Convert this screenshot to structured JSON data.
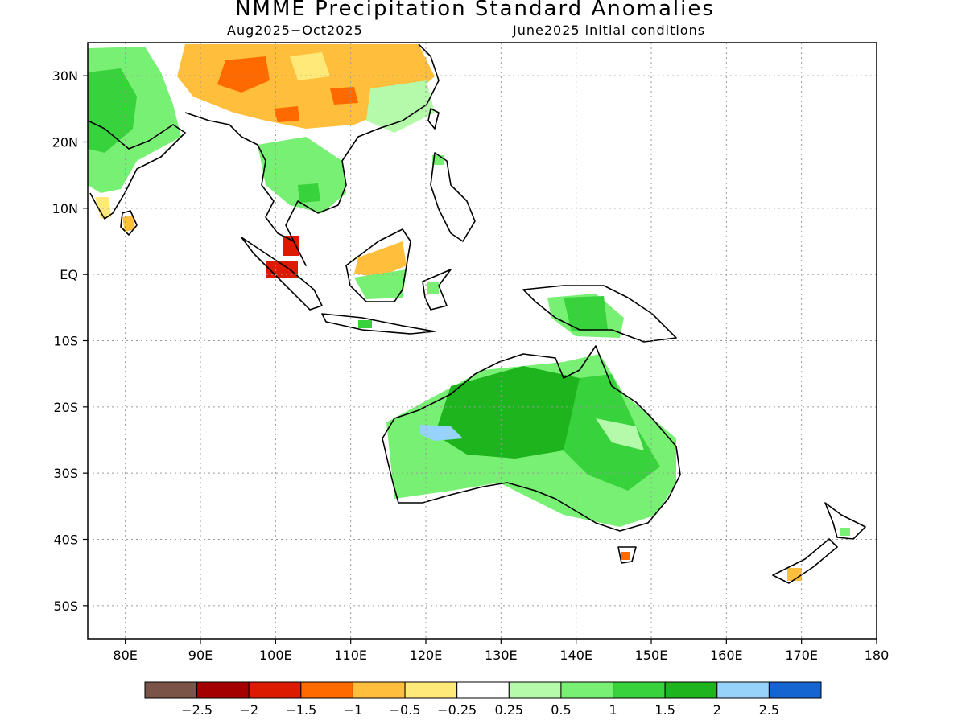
{
  "title": "NMME Precipitation Standard Anomalies",
  "subtitle_left": "Aug2025−Oct2025",
  "subtitle_right": "June2025 initial conditions",
  "map": {
    "lon_range": [
      75,
      180
    ],
    "lat_range": [
      -55,
      35
    ],
    "lat_ticks": [
      {
        "value": 30,
        "label": "30N"
      },
      {
        "value": 20,
        "label": "20N"
      },
      {
        "value": 10,
        "label": "10N"
      },
      {
        "value": 0,
        "label": "EQ"
      },
      {
        "value": -10,
        "label": "10S"
      },
      {
        "value": -20,
        "label": "20S"
      },
      {
        "value": -30,
        "label": "30S"
      },
      {
        "value": -40,
        "label": "40S"
      },
      {
        "value": -50,
        "label": "50S"
      }
    ],
    "lon_ticks": [
      {
        "value": 80,
        "label": "80E"
      },
      {
        "value": 90,
        "label": "90E"
      },
      {
        "value": 100,
        "label": "100E"
      },
      {
        "value": 110,
        "label": "110E"
      },
      {
        "value": 120,
        "label": "120E"
      },
      {
        "value": 130,
        "label": "130E"
      },
      {
        "value": 140,
        "label": "140E"
      },
      {
        "value": 150,
        "label": "150E"
      },
      {
        "value": 160,
        "label": "160E"
      },
      {
        "value": 170,
        "label": "170E"
      },
      {
        "value": 180,
        "label": "180"
      }
    ],
    "grid": true
  },
  "colorbar": {
    "colors": [
      "#7a5446",
      "#a50000",
      "#dc1a00",
      "#ff6a00",
      "#ffbe3c",
      "#ffe978",
      "#ffffff",
      "#b4faaa",
      "#78f073",
      "#37d23c",
      "#1eb41e",
      "#96d2fa",
      "#1464d2"
    ],
    "labels": [
      "−2.5",
      "−2",
      "−1.5",
      "−1",
      "−0.5",
      "−0.25",
      "0.25",
      "0.5",
      "1",
      "1.5",
      "2",
      "2.5"
    ]
  }
}
